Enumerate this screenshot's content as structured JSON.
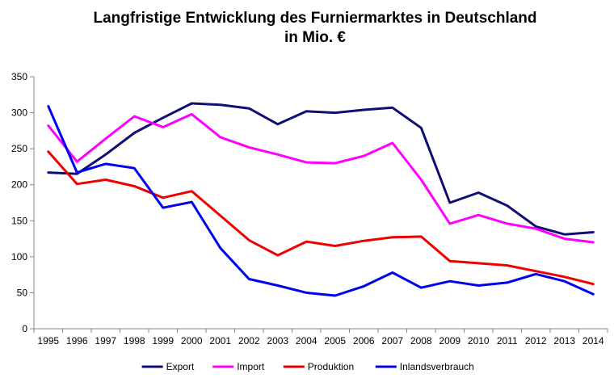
{
  "chart_data": {
    "type": "line",
    "title": "Langfristige Entwicklung des Furniermarktes in Deutschland",
    "subtitle": "in Mio. €",
    "xlabel": "",
    "ylabel": "",
    "ylim": [
      0,
      350
    ],
    "yticks": [
      0,
      50,
      100,
      150,
      200,
      250,
      300,
      350
    ],
    "grid": false,
    "legend_position": "bottom",
    "categories": [
      "1995",
      "1996",
      "1997",
      "1998",
      "1999",
      "2000",
      "2001",
      "2002",
      "2003",
      "2004",
      "2005",
      "2006",
      "2007",
      "2008",
      "2009",
      "2010",
      "2011",
      "2012",
      "2013",
      "2014"
    ],
    "series": [
      {
        "name": "Export",
        "color": "#0f0f73",
        "values": [
          217,
          215,
          242,
          272,
          293,
          313,
          311,
          306,
          284,
          302,
          300,
          304,
          307,
          279,
          175,
          189,
          171,
          142,
          131,
          134
        ]
      },
      {
        "name": "Import",
        "color": "#ff00ff",
        "values": [
          282,
          232,
          264,
          295,
          280,
          298,
          266,
          252,
          242,
          231,
          230,
          240,
          258,
          207,
          146,
          158,
          146,
          139,
          125,
          120
        ]
      },
      {
        "name": "Produktion",
        "color": "#ee0000",
        "values": [
          246,
          201,
          207,
          198,
          182,
          191,
          157,
          123,
          102,
          121,
          115,
          122,
          127,
          128,
          94,
          91,
          88,
          80,
          72,
          62
        ]
      },
      {
        "name": "Inlandsverbrauch",
        "color": "#0000ee",
        "values": [
          309,
          217,
          229,
          223,
          168,
          176,
          112,
          69,
          60,
          50,
          46,
          59,
          78,
          57,
          66,
          60,
          64,
          76,
          66,
          48
        ]
      }
    ]
  }
}
